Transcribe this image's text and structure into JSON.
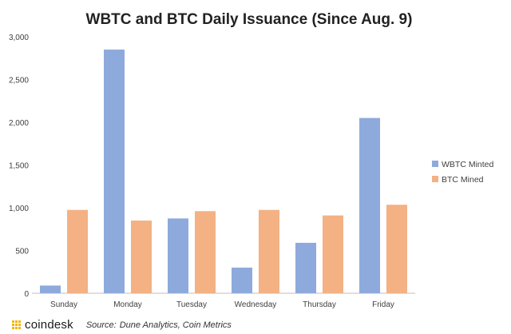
{
  "brand": {
    "logo_text": "coindesk",
    "logo_color": "#f2b705"
  },
  "footer": {
    "source_label": "Source:",
    "source_text": "Dune Analytics, Coin Metrics"
  },
  "chart_data": {
    "type": "bar",
    "title": "WBTC and BTC Daily Issuance (Since Aug. 9)",
    "xlabel": "",
    "ylabel": "",
    "categories": [
      "Sunday",
      "Monday",
      "Tuesday",
      "Wednesday",
      "Thursday",
      "Friday"
    ],
    "series": [
      {
        "name": "WBTC Minted",
        "color": "#8eaadc",
        "values": [
          90,
          2850,
          875,
          300,
          590,
          2050
        ]
      },
      {
        "name": "BTC Mined",
        "color": "#f4b183",
        "values": [
          975,
          850,
          960,
          975,
          910,
          1035
        ]
      }
    ],
    "ylim": [
      0,
      3000
    ],
    "yticks": [
      "0",
      "500",
      "1,000",
      "1,500",
      "2,000",
      "2,500",
      "3,000"
    ],
    "ytick_values": [
      0,
      500,
      1000,
      1500,
      2000,
      2500,
      3000
    ],
    "grid": false,
    "legend_position": "right"
  }
}
